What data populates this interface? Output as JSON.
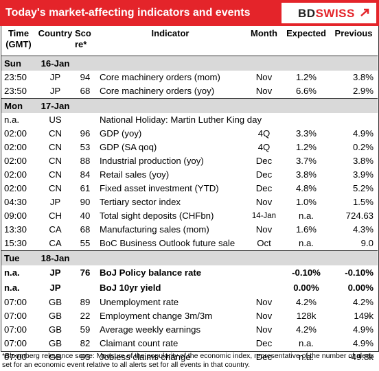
{
  "header": {
    "title": "Today's market-affecting indicators and events",
    "logo_bd": "BD",
    "logo_swiss": "SWISS",
    "accent_color": "#e4242a"
  },
  "columns": {
    "time": "Time (GMT)",
    "country": "Country",
    "score": "Score*",
    "indicator": "Indicator",
    "month": "Month",
    "expected": "Expected",
    "previous": "Previous"
  },
  "sections": [
    {
      "day": "Sun",
      "date": "16-Jan",
      "rows": [
        {
          "time": "23:50",
          "country": "JP",
          "score": "94",
          "indicator": "Core machinery orders (mom)",
          "month": "Nov",
          "expected": "1.2%",
          "previous": "3.8%"
        },
        {
          "time": "23:50",
          "country": "JP",
          "score": "68",
          "indicator": "Core machinery orders (yoy)",
          "month": "Nov",
          "expected": "6.6%",
          "previous": "2.9%"
        }
      ]
    },
    {
      "day": "Mon",
      "date": "17-Jan",
      "rows": [
        {
          "time": "n.a.",
          "country": "US",
          "score": "",
          "indicator": "National Holiday:  Martin Luther King day",
          "month": "",
          "expected": "",
          "previous": ""
        },
        {
          "time": "02:00",
          "country": "CN",
          "score": "96",
          "indicator": "GDP (yoy)",
          "month": "4Q",
          "expected": "3.3%",
          "previous": "4.9%"
        },
        {
          "time": "02:00",
          "country": "CN",
          "score": "53",
          "indicator": "GDP (SA qoq)",
          "month": "4Q",
          "expected": "1.2%",
          "previous": "0.2%"
        },
        {
          "time": "02:00",
          "country": "CN",
          "score": "88",
          "indicator": "Industrial production (yoy)",
          "month": "Dec",
          "expected": "3.7%",
          "previous": "3.8%"
        },
        {
          "time": "02:00",
          "country": "CN",
          "score": "84",
          "indicator": "Retail sales (yoy)",
          "month": "Dec",
          "expected": "3.8%",
          "previous": "3.9%"
        },
        {
          "time": "02:00",
          "country": "CN",
          "score": "61",
          "indicator": "Fixed asset investment (YTD)",
          "month": "Dec",
          "expected": "4.8%",
          "previous": "5.2%"
        },
        {
          "time": "04:30",
          "country": "JP",
          "score": "90",
          "indicator": "Tertiary sector index",
          "month": "Nov",
          "expected": "1.0%",
          "previous": "1.5%"
        },
        {
          "time": "09:00",
          "country": "CH",
          "score": "40",
          "indicator": "Total sight deposits (CHFbn)",
          "month": "14-Jan",
          "expected": "n.a.",
          "previous": "724.63",
          "small_month": true
        },
        {
          "time": "13:30",
          "country": "CA",
          "score": "68",
          "indicator": "Manufacturing sales (mom)",
          "month": "Nov",
          "expected": "1.6%",
          "previous": "4.3%"
        },
        {
          "time": "15:30",
          "country": "CA",
          "score": "55",
          "indicator": "BoC Business Outlook future sale",
          "month": "Oct",
          "expected": "n.a.",
          "previous": "9.0"
        }
      ]
    },
    {
      "day": "Tue",
      "date": "18-Jan",
      "rows": [
        {
          "time": "n.a.",
          "country": "JP",
          "score": "76",
          "indicator": "BoJ  Policy balance rate",
          "month": "",
          "expected": "-0.10%",
          "previous": "-0.10%",
          "bold": true
        },
        {
          "time": "n.a.",
          "country": "JP",
          "score": "",
          "indicator": "BoJ  10yr yield",
          "month": "",
          "expected": "0.00%",
          "previous": "0.00%",
          "bold": true
        },
        {
          "time": "07:00",
          "country": "GB",
          "score": "89",
          "indicator": "Unemployment rate",
          "month": "Nov",
          "expected": "4.2%",
          "previous": "4.2%"
        },
        {
          "time": "07:00",
          "country": "GB",
          "score": "22",
          "indicator": "Employment change 3m/3m",
          "month": "Nov",
          "expected": "128k",
          "previous": "149k"
        },
        {
          "time": "07:00",
          "country": "GB",
          "score": "59",
          "indicator": "Average weekly earnings",
          "month": "Nov",
          "expected": "4.2%",
          "previous": "4.9%"
        },
        {
          "time": "07:00",
          "country": "GB",
          "score": "82",
          "indicator": "Claimant count rate",
          "month": "Dec",
          "expected": "n.a.",
          "previous": "4.9%"
        },
        {
          "time": "07:00",
          "country": "GB",
          "score": "93",
          "indicator": "Jobless claims change",
          "month": "Dec",
          "expected": "n.a.",
          "previous": "-49.8k"
        }
      ]
    }
  ],
  "footnote": "*Bloomberg relevance score:  Measure of the popularity of the economic index, representative of the number of alerts set for an economic event relative to all alerts set for all events in that country."
}
